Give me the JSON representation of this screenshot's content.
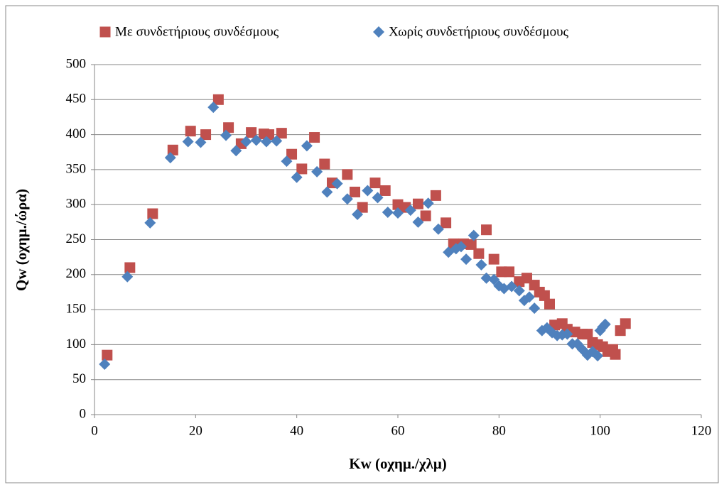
{
  "chart_data": {
    "type": "scatter",
    "xlabel": "Kw (οχημ./χλμ)",
    "ylabel": "Qw (οχημ./ώρα)",
    "xlim": [
      0,
      120
    ],
    "xticks": [
      0,
      20,
      40,
      60,
      80,
      100,
      120
    ],
    "ylim": [
      0,
      500
    ],
    "yticks": [
      0,
      50,
      100,
      150,
      200,
      250,
      300,
      350,
      400,
      450,
      500
    ],
    "grid": true,
    "legend": "top",
    "series": [
      {
        "name": "Με συνδετήριους συνδέσμους",
        "color": "#c0504d",
        "marker": "square",
        "x": [
          2.5,
          7,
          11.5,
          15.5,
          19,
          22,
          24.5,
          26.5,
          29,
          31,
          33.5,
          34.5,
          37,
          39,
          41,
          43.5,
          45.5,
          47,
          50,
          51.5,
          53,
          55.5,
          57.5,
          60,
          61.5,
          64,
          65.5,
          67.5,
          69.5,
          71,
          73,
          74.5,
          76,
          77.5,
          79,
          80.5,
          82,
          84,
          85.5,
          87,
          88,
          89,
          90,
          91,
          92.5,
          93.5,
          95,
          96.5,
          97.5,
          98.5,
          99.5,
          100.5,
          101.5,
          102.5,
          103,
          104,
          105
        ],
        "y": [
          85,
          210,
          287,
          378,
          405,
          400,
          450,
          410,
          387,
          403,
          401,
          400,
          402,
          372,
          351,
          396,
          358,
          331,
          343,
          318,
          296,
          331,
          320,
          300,
          296,
          301,
          284,
          313,
          274,
          244,
          244,
          243,
          230,
          264,
          222,
          204,
          204,
          190,
          195,
          185,
          175,
          170,
          158,
          128,
          130,
          122,
          118,
          115,
          115,
          103,
          100,
          97,
          90,
          93,
          86,
          120,
          130
        ]
      },
      {
        "name": "Χωρίς συνδετήριους συνδέσμους",
        "color": "#4f81bd",
        "marker": "diamond",
        "x": [
          2,
          6.5,
          11,
          15,
          18.5,
          21,
          23.5,
          26,
          28,
          30,
          32,
          34,
          36,
          38,
          40,
          42,
          44,
          46,
          48,
          50,
          52,
          54,
          56,
          58,
          60,
          62.5,
          64,
          66,
          68,
          70,
          71.5,
          72.5,
          73.5,
          75,
          76.5,
          77.5,
          79,
          80,
          81,
          82.5,
          84,
          85,
          86,
          87,
          88.5,
          89.5,
          90.5,
          91.5,
          92.5,
          93.5,
          94.5,
          95.5,
          96.5,
          97.5,
          98.5,
          99.5,
          100,
          100.5,
          101
        ],
        "y": [
          72,
          197,
          274,
          367,
          390,
          389,
          439,
          399,
          377,
          390,
          392,
          390,
          391,
          362,
          339,
          384,
          347,
          318,
          330,
          308,
          286,
          320,
          310,
          289,
          288,
          292,
          275,
          302,
          265,
          232,
          237,
          240,
          222,
          256,
          214,
          195,
          193,
          184,
          180,
          183,
          177,
          163,
          168,
          152,
          120,
          124,
          117,
          113,
          114,
          115,
          101,
          101,
          93,
          85,
          90,
          84,
          120,
          125,
          129
        ]
      }
    ]
  }
}
